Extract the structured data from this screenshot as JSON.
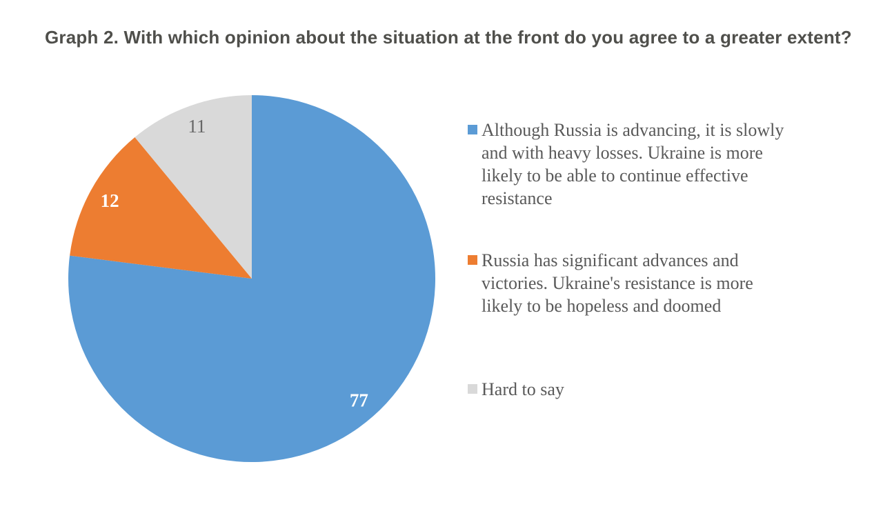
{
  "title": "Graph 2. With which opinion about the situation at the front do you agree to a greater extent?",
  "colors": {
    "series_blue": "#5B9BD5",
    "series_orange": "#ED7D31",
    "series_gray": "#D9D9D9",
    "title_text": "#4F4F4B",
    "legend_text": "#595959",
    "background": "#FFFFFF"
  },
  "chart_data": {
    "type": "pie",
    "title": "Graph 2. With which opinion about the situation at the front do you agree to a greater extent?",
    "start_angle_deg": 0,
    "direction": "clockwise",
    "legend_position": "right",
    "units": "percent",
    "slices": [
      {
        "label": "Although Russia is advancing, it is slowly and with heavy losses. Ukraine is more likely to be able to continue effective resistance",
        "value": 77,
        "color": "#5B9BD5",
        "data_label": "77",
        "data_label_color": "#FFFFFF",
        "data_label_bold": true
      },
      {
        "label": "Russia has significant advances and victories. Ukraine's resistance is more likely to be hopeless and doomed",
        "value": 12,
        "color": "#ED7D31",
        "data_label": "12",
        "data_label_color": "#FFFFFF",
        "data_label_bold": true
      },
      {
        "label": "Hard to say",
        "value": 11,
        "color": "#D9D9D9",
        "data_label": "11",
        "data_label_color": "#666666",
        "data_label_bold": false
      }
    ]
  },
  "legend": {
    "items": [
      {
        "color": "#5B9BD5",
        "lines": [
          "Although Russia is advancing, it is slowly",
          "and with heavy losses. Ukraine is more",
          "likely to be able to continue effective",
          "resistance"
        ]
      },
      {
        "color": "#ED7D31",
        "lines": [
          "Russia has significant advances and",
          "victories. Ukraine's resistance is more",
          "likely to be hopeless and doomed"
        ]
      },
      {
        "color": "#D9D9D9",
        "lines": [
          "Hard to say"
        ]
      }
    ]
  }
}
